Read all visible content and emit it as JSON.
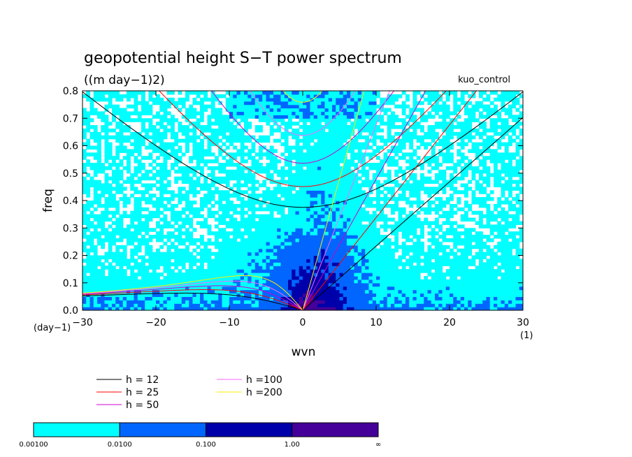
{
  "chart_data": {
    "type": "heatmap",
    "title": "geopotential height S−T power spectrum",
    "subtitle": "((m day−1)2)",
    "case_label": "kuo_control",
    "xlabel": "wvn",
    "ylabel": "freq",
    "x_unit": "(1)",
    "y_unit": "(day−1)",
    "xlim": [
      -30,
      30
    ],
    "ylim": [
      0,
      0.8
    ],
    "xticks": [
      "−30",
      "−20",
      "−10",
      "0",
      "10",
      "20",
      "30"
    ],
    "yticks": [
      "0.0",
      "0.1",
      "0.2",
      "0.3",
      "0.4",
      "0.5",
      "0.6",
      "0.7",
      "0.8"
    ],
    "colorbar": {
      "labels": [
        "0.00100",
        "0.0100",
        "0.100",
        "1.00",
        "∞"
      ],
      "colors": [
        "#00ffff",
        "#0066ff",
        "#0000aa",
        "#440099"
      ]
    },
    "dispersion_curves": [
      {
        "name": "h = 12",
        "color": "#000000"
      },
      {
        "name": "h = 25",
        "color": "#ff0000"
      },
      {
        "name": "h = 50",
        "color": "#cc00cc"
      },
      {
        "name": "h =100",
        "color": "#ff66ff"
      },
      {
        "name": "h =200",
        "color": "#ffee00"
      }
    ]
  }
}
